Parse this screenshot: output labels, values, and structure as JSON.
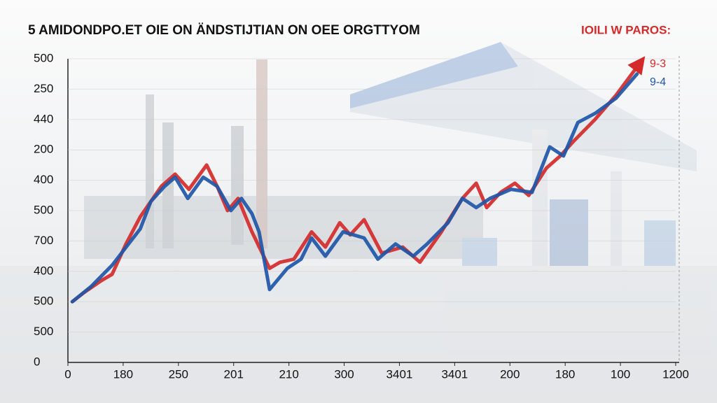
{
  "chart_data": {
    "type": "line",
    "title": "5 AMIDONDPO.ET OIE ON ÄNDSTIJTIAN ON OEE ORGTTYOM",
    "subtitle": "IOILI W PAROS:",
    "xlim": [
      0,
      11
    ],
    "xticks": [
      {
        "value": 0,
        "label": "0"
      },
      {
        "value": 1,
        "label": "180"
      },
      {
        "value": 2,
        "label": "250"
      },
      {
        "value": 3,
        "label": "201"
      },
      {
        "value": 4,
        "label": "210"
      },
      {
        "value": 5,
        "label": "300"
      },
      {
        "value": 6,
        "label": "3401"
      },
      {
        "value": 7,
        "label": "3401"
      },
      {
        "value": 8,
        "label": "200"
      },
      {
        "value": 9,
        "label": "180"
      },
      {
        "value": 10,
        "label": "100"
      },
      {
        "value": 11,
        "label": "1200"
      }
    ],
    "ylim": [
      0,
      10
    ],
    "yticks": [
      {
        "value": 0,
        "label": "0"
      },
      {
        "value": 1,
        "label": "500"
      },
      {
        "value": 2,
        "label": "500"
      },
      {
        "value": 3,
        "label": "400"
      },
      {
        "value": 4,
        "label": "700"
      },
      {
        "value": 5,
        "label": "500"
      },
      {
        "value": 6,
        "label": "400"
      },
      {
        "value": 7,
        "label": "200"
      },
      {
        "value": 8,
        "label": "440"
      },
      {
        "value": 9,
        "label": "250"
      },
      {
        "value": 10,
        "label": "500"
      }
    ],
    "grid": true,
    "series": [
      {
        "name": "9-3",
        "color": "#d42a2a",
        "x": [
          0.08,
          0.29,
          0.61,
          0.8,
          1.05,
          1.31,
          1.69,
          1.94,
          2.19,
          2.51,
          2.7,
          2.89,
          3.08,
          3.33,
          3.65,
          3.84,
          4.09,
          4.41,
          4.66,
          4.92,
          5.11,
          5.36,
          5.68,
          6.06,
          6.37,
          6.76,
          7.14,
          7.39,
          7.58,
          7.83,
          8.09,
          8.34,
          8.66,
          8.91,
          9.16,
          9.54,
          9.92,
          10.37
        ],
        "values": [
          2.0,
          2.3,
          2.7,
          2.9,
          3.9,
          4.8,
          5.8,
          6.2,
          5.7,
          6.5,
          5.8,
          5.0,
          5.4,
          4.3,
          3.1,
          3.3,
          3.4,
          4.3,
          3.8,
          4.6,
          4.2,
          4.7,
          3.6,
          3.8,
          3.3,
          4.3,
          5.4,
          5.9,
          5.1,
          5.6,
          5.9,
          5.5,
          6.4,
          6.8,
          7.3,
          8.0,
          8.8,
          9.9
        ]
      },
      {
        "name": "9-4",
        "color": "#1f56a8",
        "x": [
          0.08,
          0.42,
          0.8,
          1.31,
          1.5,
          1.75,
          1.94,
          2.17,
          2.45,
          2.7,
          2.95,
          3.14,
          3.33,
          3.46,
          3.65,
          3.97,
          4.22,
          4.41,
          4.66,
          4.98,
          5.36,
          5.61,
          5.93,
          6.25,
          6.5,
          6.88,
          7.14,
          7.39,
          7.64,
          8.02,
          8.4,
          8.72,
          8.97,
          9.23,
          9.54,
          9.92,
          10.3
        ],
        "values": [
          2.0,
          2.5,
          3.2,
          4.4,
          5.3,
          5.8,
          6.1,
          5.4,
          6.1,
          5.8,
          5.0,
          5.4,
          4.9,
          4.3,
          2.4,
          3.1,
          3.4,
          4.1,
          3.5,
          4.3,
          4.1,
          3.4,
          3.9,
          3.5,
          3.9,
          4.6,
          5.4,
          5.1,
          5.4,
          5.7,
          5.6,
          7.1,
          6.8,
          7.9,
          8.2,
          8.7,
          9.5
        ]
      }
    ]
  }
}
